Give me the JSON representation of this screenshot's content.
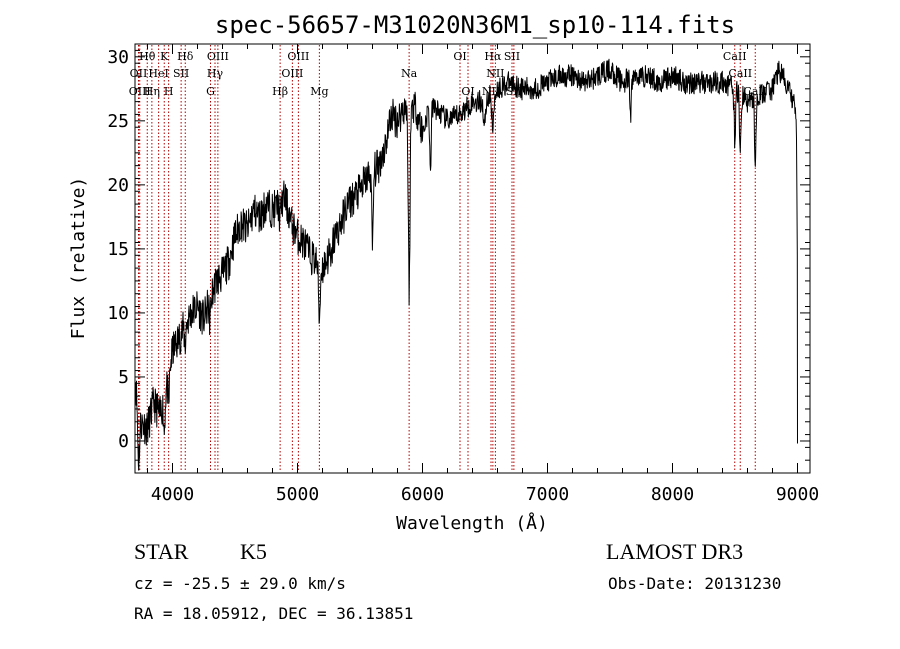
{
  "chart_data": {
    "type": "line",
    "title": "spec-56657-M31020N36M1_sp10-114.fits",
    "xlabel": "Wavelength (Å)",
    "ylabel": "Flux (relative)",
    "xlim": [
      3700,
      9100
    ],
    "ylim": [
      -2.5,
      31
    ],
    "xticks": [
      4000,
      5000,
      6000,
      7000,
      8000,
      9000
    ],
    "yticks": [
      0,
      5,
      10,
      15,
      20,
      25,
      30
    ],
    "anchors": [
      [
        3700,
        5
      ],
      [
        3740,
        1.5
      ],
      [
        3800,
        1
      ],
      [
        3850,
        3
      ],
      [
        3900,
        2
      ],
      [
        3950,
        4
      ],
      [
        4000,
        7
      ],
      [
        4050,
        8
      ],
      [
        4100,
        9
      ],
      [
        4150,
        10
      ],
      [
        4200,
        10.5
      ],
      [
        4250,
        9.5
      ],
      [
        4300,
        11
      ],
      [
        4350,
        12.5
      ],
      [
        4400,
        13
      ],
      [
        4450,
        14
      ],
      [
        4500,
        16
      ],
      [
        4550,
        17
      ],
      [
        4600,
        16.5
      ],
      [
        4650,
        18
      ],
      [
        4700,
        17.5
      ],
      [
        4750,
        18.5
      ],
      [
        4800,
        18
      ],
      [
        4850,
        18.5
      ],
      [
        4900,
        19
      ],
      [
        4950,
        17
      ],
      [
        5000,
        16
      ],
      [
        5050,
        15.5
      ],
      [
        5100,
        14.5
      ],
      [
        5150,
        14
      ],
      [
        5200,
        13.5
      ],
      [
        5250,
        14.5
      ],
      [
        5300,
        16
      ],
      [
        5350,
        17
      ],
      [
        5400,
        18.5
      ],
      [
        5450,
        19
      ],
      [
        5500,
        19.5
      ],
      [
        5550,
        20.5
      ],
      [
        5600,
        21
      ],
      [
        5650,
        21.5
      ],
      [
        5700,
        23
      ],
      [
        5750,
        25.5
      ],
      [
        5800,
        25
      ],
      [
        5850,
        26
      ],
      [
        5900,
        26.5
      ],
      [
        5950,
        26
      ],
      [
        6000,
        24
      ],
      [
        6050,
        26
      ],
      [
        6100,
        26
      ],
      [
        6200,
        25
      ],
      [
        6300,
        25.5
      ],
      [
        6400,
        26.5
      ],
      [
        6500,
        26.5
      ],
      [
        6600,
        27.5
      ],
      [
        6700,
        28
      ],
      [
        6800,
        27.5
      ],
      [
        6900,
        27.5
      ],
      [
        7000,
        28
      ],
      [
        7100,
        28.5
      ],
      [
        7200,
        28.5
      ],
      [
        7300,
        28
      ],
      [
        7400,
        28.5
      ],
      [
        7500,
        29
      ],
      [
        7600,
        28
      ],
      [
        7700,
        28.5
      ],
      [
        7800,
        28.5
      ],
      [
        7900,
        28
      ],
      [
        8000,
        28.5
      ],
      [
        8100,
        28
      ],
      [
        8200,
        28
      ],
      [
        8300,
        28
      ],
      [
        8400,
        28
      ],
      [
        8500,
        27.5
      ],
      [
        8600,
        26.5
      ],
      [
        8700,
        27
      ],
      [
        8800,
        27.5
      ],
      [
        8850,
        29
      ],
      [
        8900,
        28
      ],
      [
        8950,
        27
      ],
      [
        9000,
        25
      ]
    ],
    "absorptions": [
      {
        "x": 3728,
        "width": 10,
        "depth": 4
      },
      {
        "x": 3934,
        "width": 8,
        "depth": 2.5
      },
      {
        "x": 3969,
        "width": 8,
        "depth": 2.5
      },
      {
        "x": 4101,
        "width": 8,
        "depth": 1.5
      },
      {
        "x": 4300,
        "width": 10,
        "depth": 1.5
      },
      {
        "x": 4861,
        "width": 8,
        "depth": 1.5
      },
      {
        "x": 5175,
        "width": 10,
        "depth": 4
      },
      {
        "x": 5269,
        "width": 8,
        "depth": 1.5
      },
      {
        "x": 5600,
        "width": 8,
        "depth": 6
      },
      {
        "x": 5893,
        "width": 10,
        "depth": 14.5
      },
      {
        "x": 6063,
        "width": 8,
        "depth": 5
      },
      {
        "x": 6495,
        "width": 10,
        "depth": 2
      },
      {
        "x": 6563,
        "width": 10,
        "depth": 3
      },
      {
        "x": 7665,
        "width": 8,
        "depth": 3
      },
      {
        "x": 8498,
        "width": 8,
        "depth": 4
      },
      {
        "x": 8542,
        "width": 8,
        "depth": 5
      },
      {
        "x": 8662,
        "width": 8,
        "depth": 5
      },
      {
        "x": 9000,
        "width": 6,
        "depth": 12
      }
    ],
    "noise_amplitude": 0.9,
    "lines": [
      {
        "label": "Hθ",
        "x": 3798,
        "row": 1
      },
      {
        "label": "OII",
        "x": 3728,
        "row": 2
      },
      {
        "label": "OIII",
        "x": 3738,
        "row": 3
      },
      {
        "label": "K",
        "x": 3934,
        "row": 1
      },
      {
        "label": "HeI",
        "x": 3889,
        "row": 2
      },
      {
        "label": "Hη",
        "x": 3835,
        "row": 3
      },
      {
        "label": "H",
        "x": 3969,
        "row": 3
      },
      {
        "label": "SII",
        "x": 4069,
        "row": 2
      },
      {
        "label": "Hδ",
        "x": 4102,
        "row": 1
      },
      {
        "label": "OIII",
        "x": 4363,
        "row": 1
      },
      {
        "label": "Hγ",
        "x": 4340,
        "row": 2
      },
      {
        "label": "G",
        "x": 4304,
        "row": 3
      },
      {
        "label": "Hβ",
        "x": 4861,
        "row": 3
      },
      {
        "label": "OIII",
        "x": 4959,
        "row": 2
      },
      {
        "label": "OIII",
        "x": 5007,
        "row": 1
      },
      {
        "label": "Mg",
        "x": 5175,
        "row": 3
      },
      {
        "label": "Na",
        "x": 5893,
        "row": 2
      },
      {
        "label": "OI",
        "x": 6300,
        "row": 1
      },
      {
        "label": "OI",
        "x": 6364,
        "row": 3
      },
      {
        "label": "Hα",
        "x": 6563,
        "row": 1
      },
      {
        "label": "NII",
        "x": 6548,
        "row": 3
      },
      {
        "label": "NII",
        "x": 6583,
        "row": 2
      },
      {
        "label": "SII",
        "x": 6716,
        "row": 1
      },
      {
        "label": "SII",
        "x": 6731,
        "row": 3
      },
      {
        "label": "CaII",
        "x": 8498,
        "row": 1
      },
      {
        "label": "CaII",
        "x": 8542,
        "row": 2
      },
      {
        "label": "CaII",
        "x": 8662,
        "row": 3
      }
    ],
    "colors": {
      "spectrum": "#000000",
      "marker": "#b00000",
      "axes": "#000000"
    }
  },
  "info": {
    "object_class": "STAR",
    "subclass": "K5",
    "survey": "LAMOST DR3",
    "redshift": "cz = -25.5 ± 29.0 km/s",
    "obs_date": "Obs-Date: 20131230",
    "coords": "RA =  18.05912, DEC =  36.13851"
  }
}
